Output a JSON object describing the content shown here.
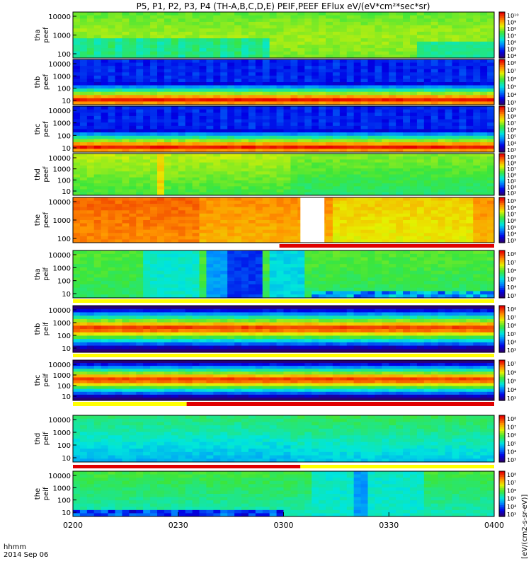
{
  "title": "P5, P1, P2, P3, P4 (TH-A,B,C,D,E) PEIF,PEEF EFlux eV/(eV*cm²*sec*sr)",
  "colorbar_label": "[eV/(cm2-s-sr-eV)]",
  "time_label": "hhmm",
  "date_label": "2014 Sep 06",
  "x_ticks": [
    "0200",
    "0230",
    "0300",
    "0330",
    "0400"
  ],
  "chart_data": {
    "type": "heatmap",
    "x_range": [
      "0200",
      "0400"
    ],
    "y_scale": "log",
    "panels": [
      {
        "name": "tha_peef",
        "label": [
          "tha",
          "peef"
        ],
        "yticks": [
          "10000",
          "1000",
          "100"
        ],
        "cbar": [
          "10¹⁰",
          "10⁹",
          "10⁸",
          "10⁷",
          "10⁶",
          "10⁵",
          "10⁴"
        ],
        "pattern": "green_band",
        "bar": null
      },
      {
        "name": "thb_peef",
        "label": [
          "thb",
          "peef"
        ],
        "yticks": [
          "10000",
          "1000",
          "100",
          "10"
        ],
        "cbar": [
          "10⁸",
          "10⁷",
          "10⁶",
          "10⁵",
          "10⁴",
          "10³"
        ],
        "pattern": "hot_bottom",
        "bar": null
      },
      {
        "name": "thc_peef",
        "label": [
          "thc",
          "peef"
        ],
        "yticks": [
          "10000",
          "1000",
          "100",
          "10"
        ],
        "cbar": [
          "10⁹",
          "10⁸",
          "10⁷",
          "10⁶",
          "10⁵",
          "10⁴",
          "10³"
        ],
        "pattern": "hot_bottom",
        "bar": null
      },
      {
        "name": "thd_peef",
        "label": [
          "thd",
          "peef"
        ],
        "yticks": [
          "10000",
          "1000",
          "100",
          "10"
        ],
        "cbar": [
          "10⁹",
          "10⁸",
          "10⁷",
          "10⁶",
          "10⁵",
          "10⁴",
          "10³"
        ],
        "pattern": "yellow_green",
        "bar": null
      },
      {
        "name": "the_peef",
        "label": [
          "the",
          "peef"
        ],
        "yticks": [
          "10000",
          "1000",
          "100"
        ],
        "cbar": [
          "10⁹",
          "10⁸",
          "10⁷",
          "10⁶",
          "10⁵",
          "10⁴",
          "10³"
        ],
        "pattern": "orange",
        "bar": {
          "split_fraction": 0.49,
          "first": "#ffffff",
          "second": "#e00000"
        }
      },
      {
        "name": "tha_peif",
        "label": [
          "tha",
          "peif"
        ],
        "yticks": [
          "10000",
          "1000",
          "100",
          "10"
        ],
        "cbar": [
          "10⁸",
          "10⁷",
          "10⁶",
          "10⁵",
          "10⁴",
          "10³"
        ],
        "pattern": "cyan_blocks",
        "bar": {
          "split_fraction": 1.0,
          "first": "#ffff00",
          "second": "#ffff00"
        }
      },
      {
        "name": "thb_peif",
        "label": [
          "thb",
          "peif"
        ],
        "yticks": [
          "10000",
          "1000",
          "100",
          "10"
        ],
        "cbar": [
          "10⁸",
          "10⁷",
          "10⁶",
          "10⁵",
          "10⁴",
          "10³"
        ],
        "pattern": "red_mid",
        "bar": {
          "split_fraction": 1.0,
          "first": "#ffff00",
          "second": "#ffff00"
        }
      },
      {
        "name": "thc_peif",
        "label": [
          "thc",
          "peif"
        ],
        "yticks": [
          "10000",
          "1000",
          "100",
          "10"
        ],
        "cbar": [
          "10⁷",
          "10⁶",
          "10⁵",
          "10⁴",
          "10³"
        ],
        "pattern": "red_mid",
        "bar": {
          "split_fraction": 0.27,
          "first": "#ffff00",
          "second": "#e00000"
        }
      },
      {
        "name": "thd_peif",
        "label": [
          "thd",
          "peif"
        ],
        "yticks": [
          "10000",
          "1000",
          "100",
          "10"
        ],
        "cbar": [
          "10⁸",
          "10⁷",
          "10⁶",
          "10⁵",
          "10⁴",
          "10³"
        ],
        "pattern": "green_lowblue",
        "bar": {
          "split_fraction": 0.54,
          "first": "#e00000",
          "second": "#ffff00"
        }
      },
      {
        "name": "the_peif",
        "label": [
          "the",
          "peif"
        ],
        "yticks": [
          "10000",
          "1000",
          "100",
          "10"
        ],
        "cbar": [
          "10⁸",
          "10⁷",
          "10⁶",
          "10⁵",
          "10⁴",
          "10³"
        ],
        "pattern": "green_blocks",
        "bar": null
      }
    ]
  }
}
